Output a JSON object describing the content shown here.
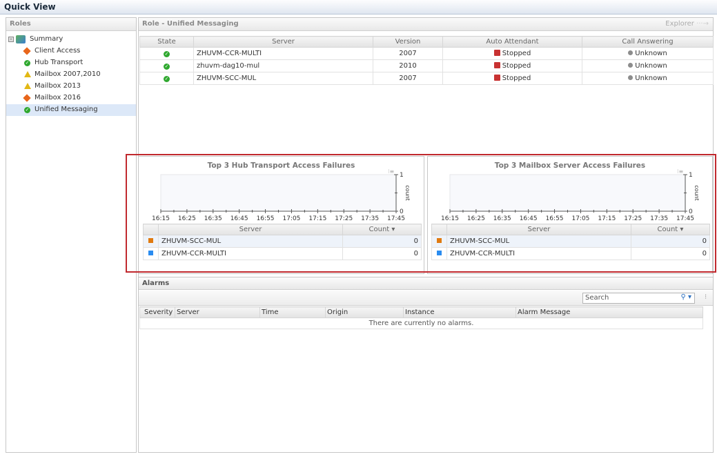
{
  "window": {
    "title": "Quick View"
  },
  "roles": {
    "header": "Roles",
    "items": [
      {
        "label": "Summary",
        "status": "summary"
      },
      {
        "label": "Client Access",
        "status": "critical"
      },
      {
        "label": "Hub Transport",
        "status": "ok"
      },
      {
        "label": "Mailbox 2007,2010",
        "status": "warning"
      },
      {
        "label": "Mailbox 2013",
        "status": "warning"
      },
      {
        "label": "Mailbox 2016",
        "status": "critical"
      },
      {
        "label": "Unified Messaging",
        "status": "ok",
        "selected": true
      }
    ]
  },
  "role": {
    "header": "Role - Unified Messaging",
    "explorer": "Explorer",
    "columns": [
      "State",
      "Server",
      "Version",
      "Auto Attendant",
      "Call Answering"
    ],
    "rows": [
      {
        "state": "ok",
        "server": "ZHUVM-CCR-MULTI",
        "version": "2007",
        "auto_attendant": "Stopped",
        "call_answering": "Unknown"
      },
      {
        "state": "ok",
        "server": "zhuvm-dag10-mul",
        "version": "2010",
        "auto_attendant": "Stopped",
        "call_answering": "Unknown"
      },
      {
        "state": "ok",
        "server": "ZHUVM-SCC-MUL",
        "version": "2007",
        "auto_attendant": "Stopped",
        "call_answering": "Unknown"
      }
    ]
  },
  "chart_data": [
    {
      "type": "line",
      "title": "Top 3 Hub Transport Access Failures",
      "ylabel": "count",
      "ylim": [
        0,
        1
      ],
      "yticks": [
        "0",
        "1"
      ],
      "x": [
        "16:15",
        "16:25",
        "16:35",
        "16:45",
        "16:55",
        "17:05",
        "17:15",
        "17:25",
        "17:35",
        "17:45"
      ],
      "table_columns": [
        "Server",
        "Count"
      ],
      "series": [
        {
          "name": "ZHUVM-SCC-MUL",
          "color": "#e07a10",
          "count": "0"
        },
        {
          "name": "ZHUVM-CCR-MULTI",
          "color": "#2a8cf0",
          "count": "0"
        }
      ]
    },
    {
      "type": "line",
      "title": "Top 3 Mailbox Server Access Failures",
      "ylabel": "count",
      "ylim": [
        0,
        1
      ],
      "yticks": [
        "0",
        "1"
      ],
      "x": [
        "16:15",
        "16:25",
        "16:35",
        "16:45",
        "16:55",
        "17:05",
        "17:15",
        "17:25",
        "17:35",
        "17:45"
      ],
      "table_columns": [
        "Server",
        "Count"
      ],
      "series": [
        {
          "name": "ZHUVM-SCC-MUL",
          "color": "#e07a10",
          "count": "0"
        },
        {
          "name": "ZHUVM-CCR-MULTI",
          "color": "#2a8cf0",
          "count": "0"
        }
      ]
    }
  ],
  "alarms": {
    "header": "Alarms",
    "search_placeholder": "Search",
    "columns": [
      "Severity",
      "Server",
      "Time",
      "Origin",
      "Instance",
      "Alarm Message"
    ],
    "empty": "There are currently no alarms."
  }
}
